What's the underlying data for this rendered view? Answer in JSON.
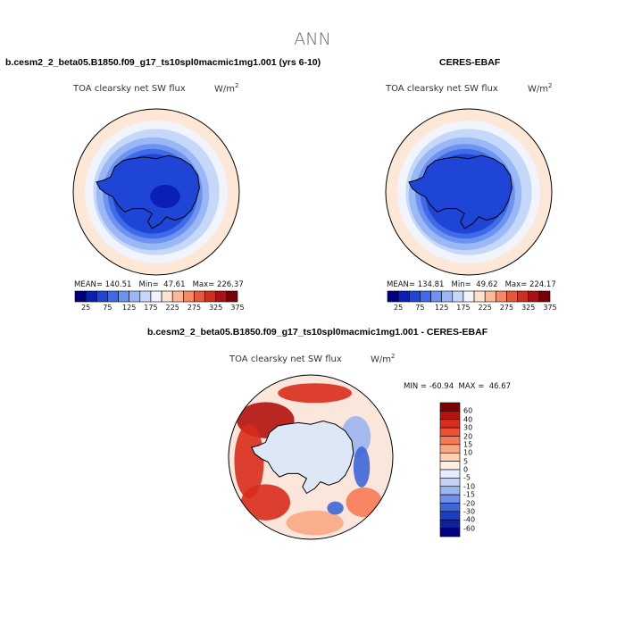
{
  "main_title": "ANN",
  "panels": [
    {
      "case_title": "b.cesm2_2_beta05.B1850.f09_g17_ts10spl0macmic1mg1.001 (yrs 6-10)",
      "variable": "TOA clearsky net SW flux",
      "units_base": "W/m",
      "units_exp": "2",
      "stats": "MEAN= 140.51   Min=  47.61   Max= 226.37"
    },
    {
      "case_title": "CERES-EBAF",
      "variable": "TOA clearsky net SW flux",
      "units_base": "W/m",
      "units_exp": "2",
      "stats": "MEAN= 134.81   Min=  49.62   Max= 224.17"
    },
    {
      "case_title": "b.cesm2_2_beta05.B1850.f09_g17_ts10spl0macmic1mg1.001 - CERES-EBAF",
      "variable": "TOA clearsky net SW flux",
      "units_base": "W/m",
      "units_exp": "2",
      "stats": "MIN = -60.94  MAX =  46.67"
    }
  ],
  "chart_data": [
    {
      "type": "heatmap",
      "projection": "south-polar-stereographic",
      "title": "b.cesm2_2_beta05.B1850.f09_g17_ts10spl0macmic1mg1.001 (yrs 6-10)",
      "variable": "TOA clearsky net SW flux",
      "units": "W/m2",
      "mean": 140.51,
      "min": 47.61,
      "max": 226.37,
      "colorbar_labels": [
        "25",
        "75",
        "125",
        "175",
        "225",
        "275",
        "325",
        "375"
      ],
      "colorbar_colors": [
        "#00007f",
        "#0a1fb4",
        "#1f45d6",
        "#3f6ae8",
        "#6d93f0",
        "#9ab8f6",
        "#c6d8f9",
        "#f1f4fb",
        "#fde1cf",
        "#f9b99a",
        "#f28a67",
        "#e35a3a",
        "#cc3020",
        "#a81214",
        "#7a0007"
      ]
    },
    {
      "type": "heatmap",
      "projection": "south-polar-stereographic",
      "title": "CERES-EBAF",
      "variable": "TOA clearsky net SW flux",
      "units": "W/m2",
      "mean": 134.81,
      "min": 49.62,
      "max": 224.17,
      "colorbar_labels": [
        "25",
        "75",
        "125",
        "175",
        "225",
        "275",
        "325",
        "375"
      ],
      "colorbar_colors": [
        "#00007f",
        "#0a1fb4",
        "#1f45d6",
        "#3f6ae8",
        "#6d93f0",
        "#9ab8f6",
        "#c6d8f9",
        "#f1f4fb",
        "#fde1cf",
        "#f9b99a",
        "#f28a67",
        "#e35a3a",
        "#cc3020",
        "#a81214",
        "#7a0007"
      ]
    },
    {
      "type": "heatmap",
      "projection": "south-polar-stereographic",
      "title": "b.cesm2_2_beta05.B1850.f09_g17_ts10spl0macmic1mg1.001 - CERES-EBAF",
      "variable": "TOA clearsky net SW flux",
      "units": "W/m2",
      "min": -60.94,
      "max": 46.67,
      "colorbar_orientation": "vertical",
      "colorbar_labels": [
        "60",
        "40",
        "30",
        "20",
        "15",
        "10",
        "5",
        "0",
        "-5",
        "-10",
        "-15",
        "-20",
        "-30",
        "-40",
        "-60"
      ],
      "colorbar_colors": [
        "#7f0000",
        "#b3120e",
        "#d92c1c",
        "#ee5030",
        "#f67a55",
        "#fba783",
        "#fdd0b6",
        "#fbeee6",
        "#e6ecfa",
        "#c4d3f5",
        "#9ab5ef",
        "#6e90e6",
        "#3f66d9",
        "#1a3fc4",
        "#0a22a0",
        "#000080"
      ]
    }
  ]
}
